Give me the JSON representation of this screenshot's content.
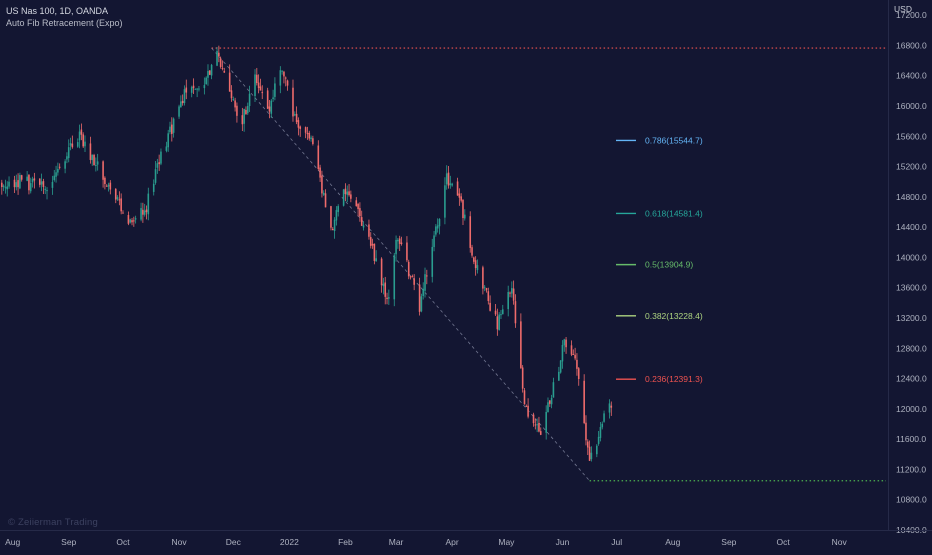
{
  "header": {
    "symbol_line": "US Nas 100, 1D, OANDA",
    "indicator_name": "Auto Fib Retracement (Expo)"
  },
  "currency": "USD",
  "watermark": "© Zeiierman Trading",
  "colors": {
    "background": "#131632",
    "bull": "#2a9d8f",
    "bear": "#ef6b6b",
    "top_line": "#ef5350",
    "bottom_line": "#4caf50",
    "diagonal": "#8a8fa8"
  },
  "chart_data": {
    "type": "candlestick",
    "ylim": [
      10400,
      17400
    ],
    "yticks": [
      17200,
      16800,
      16400,
      16000,
      15600,
      15200,
      14800,
      14400,
      14000,
      13600,
      13200,
      12800,
      12400,
      12000,
      11600,
      11200,
      10800,
      10400
    ],
    "ytick_labels": [
      "17200.0",
      "16800.0",
      "16400.0",
      "16000.0",
      "15600.0",
      "15200.0",
      "14800.0",
      "14400.0",
      "14000.0",
      "13600.0",
      "13200.0",
      "12800.0",
      "12400.0",
      "12000.0",
      "11600.0",
      "11200.0",
      "10800.0",
      "10400.0"
    ],
    "xlim": [
      "2021-07-25",
      "2022-11-28"
    ],
    "xticks": [
      {
        "date": "2021-08-01",
        "label": "Aug"
      },
      {
        "date": "2021-09-01",
        "label": "Sep"
      },
      {
        "date": "2021-10-01",
        "label": "Oct"
      },
      {
        "date": "2021-11-01",
        "label": "Nov"
      },
      {
        "date": "2021-12-01",
        "label": "Dec"
      },
      {
        "date": "2022-01-01",
        "label": "2022"
      },
      {
        "date": "2022-02-01",
        "label": "Feb"
      },
      {
        "date": "2022-03-01",
        "label": "Mar"
      },
      {
        "date": "2022-04-01",
        "label": "Apr"
      },
      {
        "date": "2022-05-01",
        "label": "May"
      },
      {
        "date": "2022-06-01",
        "label": "Jun"
      },
      {
        "date": "2022-07-01",
        "label": "Jul"
      },
      {
        "date": "2022-08-01",
        "label": "Aug"
      },
      {
        "date": "2022-09-01",
        "label": "Sep"
      },
      {
        "date": "2022-10-01",
        "label": "Oct"
      },
      {
        "date": "2022-11-01",
        "label": "Nov"
      }
    ],
    "path": [
      [
        "2021-07-26",
        15000
      ],
      [
        "2021-08-06",
        15000
      ],
      [
        "2021-08-19",
        14900
      ],
      [
        "2021-08-27",
        15250
      ],
      [
        "2021-09-07",
        15600
      ],
      [
        "2021-09-20",
        15100
      ],
      [
        "2021-10-04",
        14450
      ],
      [
        "2021-10-13",
        14600
      ],
      [
        "2021-10-22",
        15350
      ],
      [
        "2021-11-04",
        16150
      ],
      [
        "2021-11-12",
        16200
      ],
      [
        "2021-11-22",
        16650
      ],
      [
        "2021-11-30",
        16100
      ],
      [
        "2021-12-06",
        15800
      ],
      [
        "2021-12-13",
        16400
      ],
      [
        "2021-12-20",
        15900
      ],
      [
        "2021-12-28",
        16550
      ],
      [
        "2022-01-05",
        15700
      ],
      [
        "2022-01-12",
        15650
      ],
      [
        "2022-01-24",
        14350
      ],
      [
        "2022-02-02",
        14950
      ],
      [
        "2022-02-14",
        14250
      ],
      [
        "2022-02-24",
        13400
      ],
      [
        "2022-03-02",
        14300
      ],
      [
        "2022-03-14",
        13350
      ],
      [
        "2022-03-29",
        15050
      ],
      [
        "2022-04-05",
        14800
      ],
      [
        "2022-04-13",
        14000
      ],
      [
        "2022-04-26",
        13100
      ],
      [
        "2022-05-04",
        13600
      ],
      [
        "2022-05-11",
        12000
      ],
      [
        "2022-05-20",
        11700
      ],
      [
        "2022-05-27",
        12300
      ],
      [
        "2022-06-02",
        12850
      ],
      [
        "2022-06-08",
        12700
      ],
      [
        "2022-06-14",
        11600
      ],
      [
        "2022-06-16",
        11250
      ],
      [
        "2022-06-24",
        11900
      ],
      [
        "2022-06-28",
        12050
      ]
    ],
    "swing_high": {
      "date": "2021-11-19",
      "value": 16765
    },
    "swing_low": {
      "date": "2022-06-16",
      "value": 11050
    },
    "fib_levels": [
      {
        "ratio": "0.786",
        "value": "15544.7",
        "label": "0.786(15544.7)",
        "color": "#64b5f6"
      },
      {
        "ratio": "0.618",
        "value": "14581.4",
        "label": "0.618(14581.4)",
        "color": "#26a69a"
      },
      {
        "ratio": "0.5",
        "value": "13904.9",
        "label": "0.5(13904.9)",
        "color": "#66bb6a"
      },
      {
        "ratio": "0.382",
        "value": "13228.4",
        "label": "0.382(13228.4)",
        "color": "#aed581"
      },
      {
        "ratio": "0.236",
        "value": "12391.3",
        "label": "0.236(12391.3)",
        "color": "#ef5350"
      }
    ]
  }
}
